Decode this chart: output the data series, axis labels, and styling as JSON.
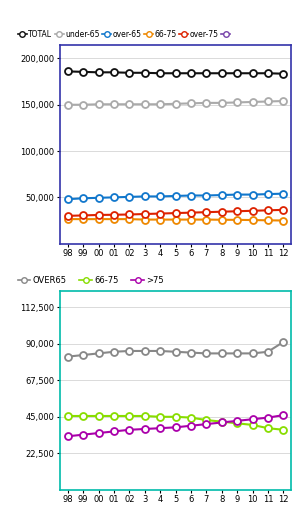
{
  "x_labels": [
    "98",
    "99",
    "00",
    "01",
    "02",
    "3",
    "4",
    "5",
    "6",
    "7",
    "8",
    "9",
    "10",
    "11",
    "12"
  ],
  "x_vals": [
    0,
    1,
    2,
    3,
    4,
    5,
    6,
    7,
    8,
    9,
    10,
    11,
    12,
    13,
    14
  ],
  "top_chart": {
    "TOTAL": [
      186000,
      185500,
      185000,
      185000,
      184500,
      184500,
      184000,
      184000,
      184000,
      184000,
      184000,
      184000,
      184000,
      184000,
      183500
    ],
    "under_65": [
      150000,
      150000,
      150500,
      150500,
      150500,
      150500,
      150500,
      151000,
      151500,
      152000,
      152000,
      152500,
      153000,
      153500,
      154000
    ],
    "over_65": [
      48000,
      49000,
      49500,
      50000,
      50500,
      51000,
      51000,
      51500,
      52000,
      52000,
      52500,
      53000,
      53000,
      53500,
      54000
    ],
    "c6675": [
      26500,
      26500,
      26500,
      26500,
      26500,
      26000,
      26000,
      26000,
      26000,
      26000,
      25800,
      25700,
      25500,
      25200,
      25000
    ],
    "over_75": [
      30000,
      30500,
      31000,
      31200,
      31500,
      32000,
      32500,
      33000,
      33500,
      34000,
      34500,
      35000,
      35500,
      36000,
      36500
    ],
    "ylim": [
      0,
      215000
    ],
    "yticks": [
      50000,
      100000,
      150000,
      200000
    ],
    "ytick_labels": [
      "50,000",
      "100,000",
      "150,000",
      "200,000"
    ],
    "colors": {
      "TOTAL": "#111111",
      "under_65": "#aaaaaa",
      "over_65": "#1177cc",
      "c6675": "#ee8800",
      "over_75": "#dd2200"
    },
    "border_color": "#3333aa"
  },
  "bot_chart": {
    "OVER65": [
      82000,
      83000,
      84000,
      85000,
      85500,
      85500,
      85500,
      85000,
      84500,
      84000,
      84000,
      84000,
      84000,
      85000,
      91000
    ],
    "c6675": [
      45500,
      45500,
      45500,
      45500,
      45500,
      45500,
      45000,
      45000,
      44500,
      43000,
      42000,
      41000,
      40000,
      38000,
      37000
    ],
    "gt75": [
      33000,
      34000,
      35000,
      36000,
      37000,
      37500,
      38000,
      38500,
      39500,
      40500,
      41500,
      42500,
      43500,
      44500,
      46000
    ],
    "ylim": [
      0,
      122500
    ],
    "yticks": [
      22500,
      45000,
      67500,
      90000,
      112500
    ],
    "ytick_labels": [
      "22,500",
      "45,000",
      "67,500",
      "90,000",
      "112,500"
    ],
    "colors": {
      "OVER65": "#888888",
      "c6675": "#88dd00",
      "gt75": "#aa00aa"
    },
    "border_color": "#00bbaa"
  },
  "legend1_labels": [
    "TOTAL",
    "under-65",
    "over-65",
    "66-75",
    "over-75",
    ""
  ],
  "legend1_colors": [
    "#111111",
    "#aaaaaa",
    "#1177cc",
    "#ee8800",
    "#dd2200",
    "#7744aa"
  ],
  "legend2_labels": [
    "OVER65",
    "66-75",
    ">75"
  ],
  "legend2_colors": [
    "#888888",
    "#88dd00",
    "#aa00aa"
  ]
}
